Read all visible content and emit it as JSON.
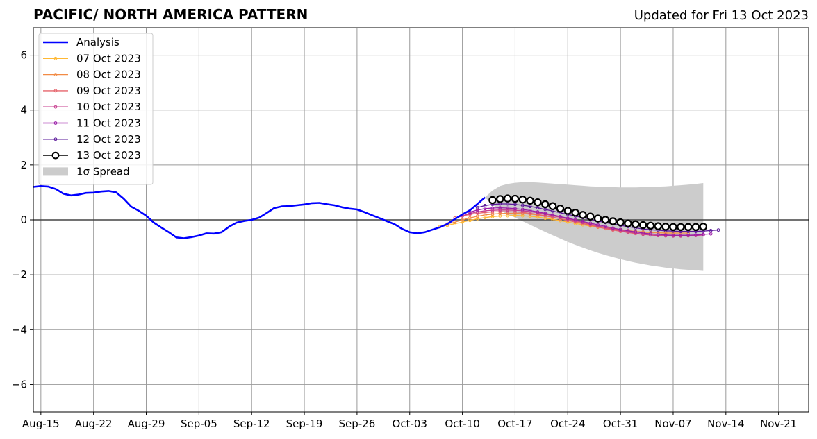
{
  "chart_data": {
    "type": "line",
    "title": "PACIFIC/ NORTH AMERICA PATTERN",
    "subtitle": "Updated for Fri 13 Oct 2023",
    "xlabel": "",
    "ylabel": "",
    "xlim": [
      "2023-08-14",
      "2023-11-25"
    ],
    "ylim": [
      -7,
      7
    ],
    "x_ticks": [
      {
        "date": "2023-08-15",
        "label": "Aug-15"
      },
      {
        "date": "2023-08-22",
        "label": "Aug-22"
      },
      {
        "date": "2023-08-29",
        "label": "Aug-29"
      },
      {
        "date": "2023-09-05",
        "label": "Sep-05"
      },
      {
        "date": "2023-09-12",
        "label": "Sep-12"
      },
      {
        "date": "2023-09-19",
        "label": "Sep-19"
      },
      {
        "date": "2023-09-26",
        "label": "Sep-26"
      },
      {
        "date": "2023-10-03",
        "label": "Oct-03"
      },
      {
        "date": "2023-10-10",
        "label": "Oct-10"
      },
      {
        "date": "2023-10-17",
        "label": "Oct-17"
      },
      {
        "date": "2023-10-24",
        "label": "Oct-24"
      },
      {
        "date": "2023-10-31",
        "label": "Oct-31"
      },
      {
        "date": "2023-11-07",
        "label": "Nov-07"
      },
      {
        "date": "2023-11-14",
        "label": "Nov-14"
      },
      {
        "date": "2023-11-21",
        "label": "Nov-21"
      }
    ],
    "y_ticks": [
      {
        "value": 6,
        "label": "6"
      },
      {
        "value": 4,
        "label": "4"
      },
      {
        "value": 2,
        "label": "2"
      },
      {
        "value": 0,
        "label": "0"
      },
      {
        "value": -2,
        "label": "−2"
      },
      {
        "value": -4,
        "label": "−4"
      },
      {
        "value": -6,
        "label": "−6"
      }
    ],
    "grid": true,
    "legend_position": "top-left",
    "analysis": {
      "name": "Analysis",
      "color": "#0000ff",
      "points": [
        [
          "2023-08-14",
          1.2
        ],
        [
          "2023-08-15",
          1.23
        ],
        [
          "2023-08-16",
          1.21
        ],
        [
          "2023-08-17",
          1.12
        ],
        [
          "2023-08-18",
          0.95
        ],
        [
          "2023-08-19",
          0.89
        ],
        [
          "2023-08-20",
          0.92
        ],
        [
          "2023-08-21",
          0.98
        ],
        [
          "2023-08-22",
          0.99
        ],
        [
          "2023-08-23",
          1.03
        ],
        [
          "2023-08-24",
          1.05
        ],
        [
          "2023-08-25",
          1.0
        ],
        [
          "2023-08-26",
          0.77
        ],
        [
          "2023-08-27",
          0.48
        ],
        [
          "2023-08-28",
          0.33
        ],
        [
          "2023-08-29",
          0.15
        ],
        [
          "2023-08-30",
          -0.1
        ],
        [
          "2023-08-31",
          -0.28
        ],
        [
          "2023-09-01",
          -0.45
        ],
        [
          "2023-09-02",
          -0.64
        ],
        [
          "2023-09-03",
          -0.67
        ],
        [
          "2023-09-04",
          -0.63
        ],
        [
          "2023-09-05",
          -0.57
        ],
        [
          "2023-09-06",
          -0.49
        ],
        [
          "2023-09-07",
          -0.5
        ],
        [
          "2023-09-08",
          -0.45
        ],
        [
          "2023-09-09",
          -0.25
        ],
        [
          "2023-09-10",
          -0.1
        ],
        [
          "2023-09-11",
          -0.04
        ],
        [
          "2023-09-12",
          0.0
        ],
        [
          "2023-09-13",
          0.08
        ],
        [
          "2023-09-14",
          0.25
        ],
        [
          "2023-09-15",
          0.43
        ],
        [
          "2023-09-16",
          0.49
        ],
        [
          "2023-09-17",
          0.5
        ],
        [
          "2023-09-18",
          0.53
        ],
        [
          "2023-09-19",
          0.56
        ],
        [
          "2023-09-20",
          0.61
        ],
        [
          "2023-09-21",
          0.62
        ],
        [
          "2023-09-22",
          0.57
        ],
        [
          "2023-09-23",
          0.53
        ],
        [
          "2023-09-24",
          0.46
        ],
        [
          "2023-09-25",
          0.41
        ],
        [
          "2023-09-26",
          0.38
        ],
        [
          "2023-09-27",
          0.28
        ],
        [
          "2023-09-28",
          0.17
        ],
        [
          "2023-09-29",
          0.06
        ],
        [
          "2023-09-30",
          -0.05
        ],
        [
          "2023-10-01",
          -0.16
        ],
        [
          "2023-10-02",
          -0.33
        ],
        [
          "2023-10-03",
          -0.45
        ],
        [
          "2023-10-04",
          -0.49
        ],
        [
          "2023-10-05",
          -0.45
        ],
        [
          "2023-10-06",
          -0.36
        ],
        [
          "2023-10-07",
          -0.27
        ],
        [
          "2023-10-08",
          -0.15
        ],
        [
          "2023-10-09",
          0.03
        ],
        [
          "2023-10-10",
          0.2
        ],
        [
          "2023-10-11",
          0.35
        ],
        [
          "2023-10-12",
          0.58
        ],
        [
          "2023-10-13",
          0.82
        ]
      ]
    },
    "forecasts": [
      {
        "name": "07 Oct 2023",
        "color": "#ffb833",
        "start": "2023-10-07",
        "values": [
          -0.25,
          -0.2,
          -0.14,
          -0.08,
          -0.02,
          0.04,
          0.08,
          0.12,
          0.14,
          0.15,
          0.16,
          0.15,
          0.13,
          0.1,
          0.06,
          0.02,
          -0.03,
          -0.08,
          -0.13,
          -0.18,
          -0.23,
          -0.27,
          -0.31,
          -0.35,
          -0.38,
          -0.41,
          -0.43,
          -0.45,
          -0.46,
          -0.47,
          -0.48,
          -0.48,
          -0.48
        ]
      },
      {
        "name": "08 Oct 2023",
        "color": "#f28b45",
        "start": "2023-10-08",
        "values": [
          -0.15,
          -0.08,
          0.0,
          0.07,
          0.13,
          0.18,
          0.21,
          0.23,
          0.24,
          0.24,
          0.23,
          0.21,
          0.18,
          0.14,
          0.09,
          0.04,
          -0.01,
          -0.07,
          -0.12,
          -0.18,
          -0.23,
          -0.28,
          -0.32,
          -0.36,
          -0.39,
          -0.42,
          -0.44,
          -0.46,
          -0.47,
          -0.48,
          -0.48,
          -0.48,
          -0.48
        ]
      },
      {
        "name": "09 Oct 2023",
        "color": "#e5636b",
        "start": "2023-10-09",
        "values": [
          0.07,
          0.14,
          0.2,
          0.24,
          0.27,
          0.29,
          0.3,
          0.3,
          0.29,
          0.27,
          0.24,
          0.2,
          0.15,
          0.1,
          0.04,
          -0.02,
          -0.08,
          -0.14,
          -0.2,
          -0.26,
          -0.32,
          -0.37,
          -0.42,
          -0.46,
          -0.5,
          -0.53,
          -0.55,
          -0.57,
          -0.58,
          -0.58,
          -0.58,
          -0.57,
          -0.56
        ]
      },
      {
        "name": "10 Oct 2023",
        "color": "#c73c8e",
        "start": "2023-10-10",
        "values": [
          0.15,
          0.23,
          0.29,
          0.33,
          0.35,
          0.36,
          0.36,
          0.35,
          0.33,
          0.3,
          0.26,
          0.21,
          0.15,
          0.09,
          0.03,
          -0.03,
          -0.09,
          -0.16,
          -0.22,
          -0.28,
          -0.34,
          -0.39,
          -0.44,
          -0.48,
          -0.52,
          -0.55,
          -0.57,
          -0.58,
          -0.59,
          -0.59,
          -0.58,
          -0.57,
          -0.55
        ]
      },
      {
        "name": "11 Oct 2023",
        "color": "#9a1ea8",
        "start": "2023-10-11",
        "values": [
          0.28,
          0.36,
          0.41,
          0.43,
          0.44,
          0.43,
          0.41,
          0.38,
          0.34,
          0.29,
          0.24,
          0.18,
          0.12,
          0.06,
          0.0,
          -0.06,
          -0.12,
          -0.18,
          -0.24,
          -0.3,
          -0.35,
          -0.4,
          -0.44,
          -0.48,
          -0.51,
          -0.53,
          -0.55,
          -0.56,
          -0.56,
          -0.56,
          -0.55,
          -0.53,
          -0.51
        ]
      },
      {
        "name": "12 Oct 2023",
        "color": "#5a189a",
        "start": "2023-10-12",
        "values": [
          0.45,
          0.52,
          0.56,
          0.58,
          0.58,
          0.56,
          0.53,
          0.49,
          0.44,
          0.38,
          0.32,
          0.26,
          0.2,
          0.14,
          0.08,
          0.02,
          -0.04,
          -0.1,
          -0.15,
          -0.2,
          -0.25,
          -0.29,
          -0.33,
          -0.36,
          -0.38,
          -0.4,
          -0.41,
          -0.42,
          -0.42,
          -0.42,
          -0.41,
          -0.39,
          -0.37
        ]
      },
      {
        "name": "13 Oct 2023",
        "color": "#000000",
        "start": "2023-10-14",
        "values": [
          0.72,
          0.76,
          0.78,
          0.77,
          0.74,
          0.7,
          0.64,
          0.57,
          0.5,
          0.41,
          0.33,
          0.26,
          0.18,
          0.12,
          0.05,
          0.0,
          -0.05,
          -0.09,
          -0.13,
          -0.16,
          -0.19,
          -0.21,
          -0.23,
          -0.25,
          -0.26,
          -0.26,
          -0.26,
          -0.26,
          -0.25
        ]
      }
    ],
    "spread": {
      "name": "1σ Spread",
      "color": "#cccccc",
      "start": "2023-10-13",
      "upper": [
        0.82,
        1.07,
        1.23,
        1.31,
        1.35,
        1.37,
        1.37,
        1.36,
        1.34,
        1.32,
        1.3,
        1.28,
        1.26,
        1.24,
        1.22,
        1.21,
        1.2,
        1.19,
        1.18,
        1.18,
        1.18,
        1.19,
        1.2,
        1.21,
        1.22,
        1.24,
        1.26,
        1.28,
        1.31,
        1.34
      ],
      "lower": [
        0.82,
        0.55,
        0.35,
        0.2,
        0.08,
        -0.05,
        -0.18,
        -0.31,
        -0.44,
        -0.56,
        -0.68,
        -0.8,
        -0.91,
        -1.01,
        -1.11,
        -1.2,
        -1.28,
        -1.36,
        -1.43,
        -1.5,
        -1.56,
        -1.61,
        -1.66,
        -1.7,
        -1.74,
        -1.77,
        -1.8,
        -1.82,
        -1.84,
        -1.86
      ]
    },
    "legend": [
      "Analysis",
      "07 Oct 2023",
      "08 Oct 2023",
      "09 Oct 2023",
      "10 Oct 2023",
      "11 Oct 2023",
      "12 Oct 2023",
      "13 Oct 2023",
      "1σ Spread"
    ]
  }
}
